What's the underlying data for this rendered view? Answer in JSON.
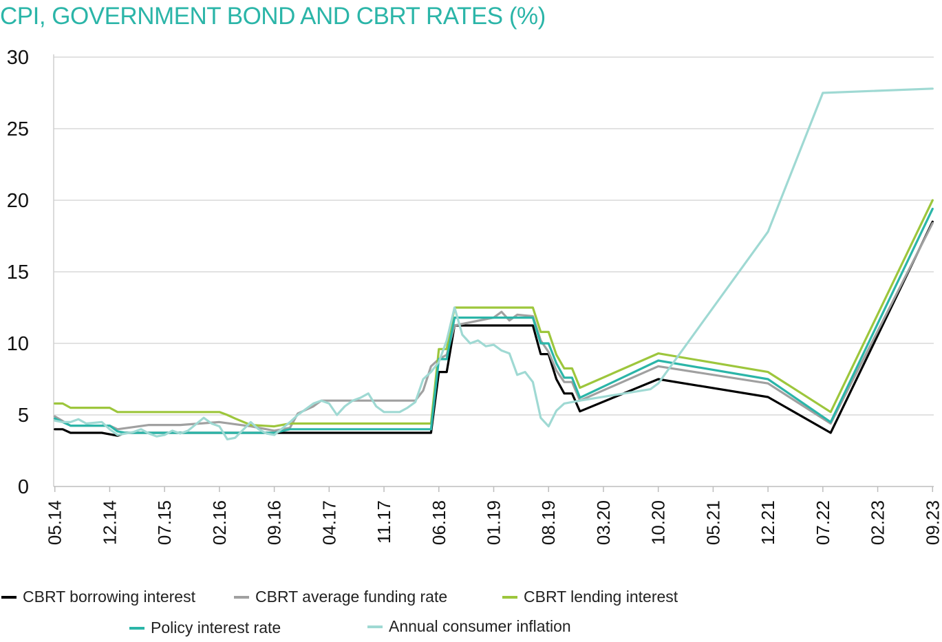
{
  "chart_data": {
    "type": "line",
    "title": "CPI, GOVERNMENT BOND AND CBRT RATES (%)",
    "xlabel": "",
    "ylabel": "",
    "ylim": [
      0,
      30
    ],
    "yticks": [
      0,
      5,
      10,
      15,
      20,
      25,
      30
    ],
    "x_tick_labels": [
      "05.14",
      "12.14",
      "07.15",
      "02.16",
      "09.16",
      "04.17",
      "11.17",
      "06.18",
      "01.19",
      "08.19",
      "03.20",
      "10.20",
      "05.21",
      "12.21",
      "07.22",
      "02.23",
      "09.23"
    ],
    "grid": "horizontal",
    "legend_position": "bottom",
    "series": [
      {
        "name": "CBRT borrowing interest",
        "color": "#000000",
        "points": [
          [
            "05.14",
            4.0
          ],
          [
            "06.14",
            4.0
          ],
          [
            "07.14",
            3.75
          ],
          [
            "11.14",
            3.75
          ],
          [
            "01.15",
            3.55
          ],
          [
            "02.15",
            3.75
          ],
          [
            "03.16",
            3.75
          ],
          [
            "04.16",
            3.75
          ],
          [
            "09.16",
            3.75
          ],
          [
            "05.18",
            3.75
          ],
          [
            "06.18",
            8.0
          ],
          [
            "07.18",
            8.0
          ],
          [
            "08.18",
            11.25
          ],
          [
            "06.19",
            11.25
          ],
          [
            "07.19",
            9.25
          ],
          [
            "08.19",
            9.25
          ],
          [
            "09.19",
            7.5
          ],
          [
            "10.19",
            6.5
          ],
          [
            "11.19",
            6.5
          ],
          [
            "12.19",
            5.25
          ],
          [
            "10.20",
            7.5
          ],
          [
            "12.21",
            6.25
          ],
          [
            "08.22",
            3.75
          ],
          [
            "09.23",
            18.5
          ]
        ]
      },
      {
        "name": "CBRT average funding rate",
        "color": "#a0a0a0",
        "points": [
          [
            "05.14",
            4.9
          ],
          [
            "07.14",
            4.25
          ],
          [
            "12.14",
            4.25
          ],
          [
            "01.15",
            4.0
          ],
          [
            "05.15",
            4.3
          ],
          [
            "09.15",
            4.3
          ],
          [
            "02.16",
            4.5
          ],
          [
            "06.16",
            4.2
          ],
          [
            "09.16",
            3.9
          ],
          [
            "11.16",
            4.1
          ],
          [
            "12.16",
            5.1
          ],
          [
            "02.17",
            5.6
          ],
          [
            "03.17",
            6.0
          ],
          [
            "01.18",
            6.0
          ],
          [
            "03.18",
            6.0
          ],
          [
            "04.18",
            6.7
          ],
          [
            "05.18",
            8.4
          ],
          [
            "06.18",
            8.9
          ],
          [
            "07.18",
            9.2
          ],
          [
            "08.18",
            11.25
          ],
          [
            "01.19",
            11.8
          ],
          [
            "02.19",
            12.2
          ],
          [
            "03.19",
            11.6
          ],
          [
            "04.19",
            12.0
          ],
          [
            "06.19",
            11.9
          ],
          [
            "07.19",
            10.2
          ],
          [
            "08.19",
            9.4
          ],
          [
            "09.19",
            8.1
          ],
          [
            "10.19",
            7.3
          ],
          [
            "11.19",
            7.3
          ],
          [
            "12.19",
            6.0
          ],
          [
            "10.20",
            8.4
          ],
          [
            "12.21",
            7.2
          ],
          [
            "08.22",
            4.4
          ],
          [
            "09.23",
            18.4
          ]
        ]
      },
      {
        "name": "CBRT lending interest",
        "color": "#9dc63c",
        "points": [
          [
            "05.14",
            5.8
          ],
          [
            "06.14",
            5.8
          ],
          [
            "07.14",
            5.5
          ],
          [
            "12.14",
            5.5
          ],
          [
            "01.15",
            5.2
          ],
          [
            "02.16",
            5.2
          ],
          [
            "03.16",
            5.0
          ],
          [
            "04.16",
            4.75
          ],
          [
            "06.16",
            4.3
          ],
          [
            "09.16",
            4.2
          ],
          [
            "11.16",
            4.4
          ],
          [
            "05.18",
            4.4
          ],
          [
            "06.18",
            9.6
          ],
          [
            "07.18",
            9.6
          ],
          [
            "08.18",
            12.5
          ],
          [
            "06.19",
            12.5
          ],
          [
            "07.19",
            10.8
          ],
          [
            "08.19",
            10.8
          ],
          [
            "09.19",
            9.2
          ],
          [
            "10.19",
            8.25
          ],
          [
            "11.19",
            8.25
          ],
          [
            "12.19",
            6.9
          ],
          [
            "10.20",
            9.3
          ],
          [
            "12.21",
            8.0
          ],
          [
            "08.22",
            5.2
          ],
          [
            "09.23",
            20.0
          ]
        ]
      },
      {
        "name": "Policy interest rate",
        "color": "#2bb5a8",
        "points": [
          [
            "05.14",
            4.75
          ],
          [
            "06.14",
            4.5
          ],
          [
            "07.14",
            4.25
          ],
          [
            "12.14",
            4.25
          ],
          [
            "01.15",
            3.85
          ],
          [
            "02.15",
            3.75
          ],
          [
            "02.16",
            3.75
          ],
          [
            "09.16",
            3.75
          ],
          [
            "11.16",
            4.0
          ],
          [
            "05.18",
            4.0
          ],
          [
            "06.18",
            8.9
          ],
          [
            "07.18",
            8.9
          ],
          [
            "08.18",
            11.8
          ],
          [
            "06.19",
            11.8
          ],
          [
            "07.19",
            10.0
          ],
          [
            "08.19",
            10.0
          ],
          [
            "09.19",
            8.6
          ],
          [
            "10.19",
            7.6
          ],
          [
            "11.19",
            7.6
          ],
          [
            "12.19",
            6.2
          ],
          [
            "10.20",
            8.8
          ],
          [
            "12.21",
            7.5
          ],
          [
            "08.22",
            4.5
          ],
          [
            "09.23",
            19.4
          ]
        ]
      },
      {
        "name": "Annual consumer inflation",
        "color": "#9fd9d3",
        "points": [
          [
            "05.14",
            4.6
          ],
          [
            "06.14",
            4.5
          ],
          [
            "07.14",
            4.5
          ],
          [
            "08.14",
            4.7
          ],
          [
            "09.14",
            4.4
          ],
          [
            "11.14",
            4.5
          ],
          [
            "12.14",
            4.0
          ],
          [
            "01.15",
            3.6
          ],
          [
            "03.15",
            3.8
          ],
          [
            "04.15",
            4.0
          ],
          [
            "05.15",
            3.7
          ],
          [
            "06.15",
            3.5
          ],
          [
            "07.15",
            3.6
          ],
          [
            "08.15",
            3.9
          ],
          [
            "09.15",
            3.7
          ],
          [
            "10.15",
            3.9
          ],
          [
            "12.15",
            4.8
          ],
          [
            "01.16",
            4.4
          ],
          [
            "02.16",
            4.2
          ],
          [
            "03.16",
            3.3
          ],
          [
            "04.16",
            3.4
          ],
          [
            "06.16",
            4.5
          ],
          [
            "07.16",
            4.0
          ],
          [
            "08.16",
            3.7
          ],
          [
            "09.16",
            3.6
          ],
          [
            "11.16",
            4.5
          ],
          [
            "12.16",
            5.0
          ],
          [
            "02.17",
            5.8
          ],
          [
            "03.17",
            6.0
          ],
          [
            "04.17",
            5.8
          ],
          [
            "05.17",
            5.0
          ],
          [
            "06.17",
            5.6
          ],
          [
            "07.17",
            6.0
          ],
          [
            "08.17",
            6.2
          ],
          [
            "09.17",
            6.5
          ],
          [
            "10.17",
            5.6
          ],
          [
            "11.17",
            5.2
          ],
          [
            "01.18",
            5.2
          ],
          [
            "02.18",
            5.5
          ],
          [
            "03.18",
            5.9
          ],
          [
            "04.18",
            7.5
          ],
          [
            "05.18",
            8.0
          ],
          [
            "06.18",
            8.7
          ],
          [
            "07.18",
            10.2
          ],
          [
            "08.18",
            12.5
          ],
          [
            "09.18",
            10.6
          ],
          [
            "10.18",
            10.0
          ],
          [
            "11.18",
            10.2
          ],
          [
            "12.18",
            9.8
          ],
          [
            "01.19",
            9.9
          ],
          [
            "02.19",
            9.5
          ],
          [
            "03.19",
            9.3
          ],
          [
            "04.19",
            7.8
          ],
          [
            "05.19",
            8.0
          ],
          [
            "06.19",
            7.3
          ],
          [
            "07.19",
            4.8
          ],
          [
            "08.19",
            4.2
          ],
          [
            "09.19",
            5.3
          ],
          [
            "10.19",
            5.8
          ],
          [
            "12.19",
            6.0
          ],
          [
            "09.20",
            6.8
          ],
          [
            "10.20",
            7.2
          ],
          [
            "12.21",
            17.8
          ],
          [
            "07.22",
            27.5
          ],
          [
            "09.23",
            27.8
          ]
        ]
      }
    ]
  }
}
